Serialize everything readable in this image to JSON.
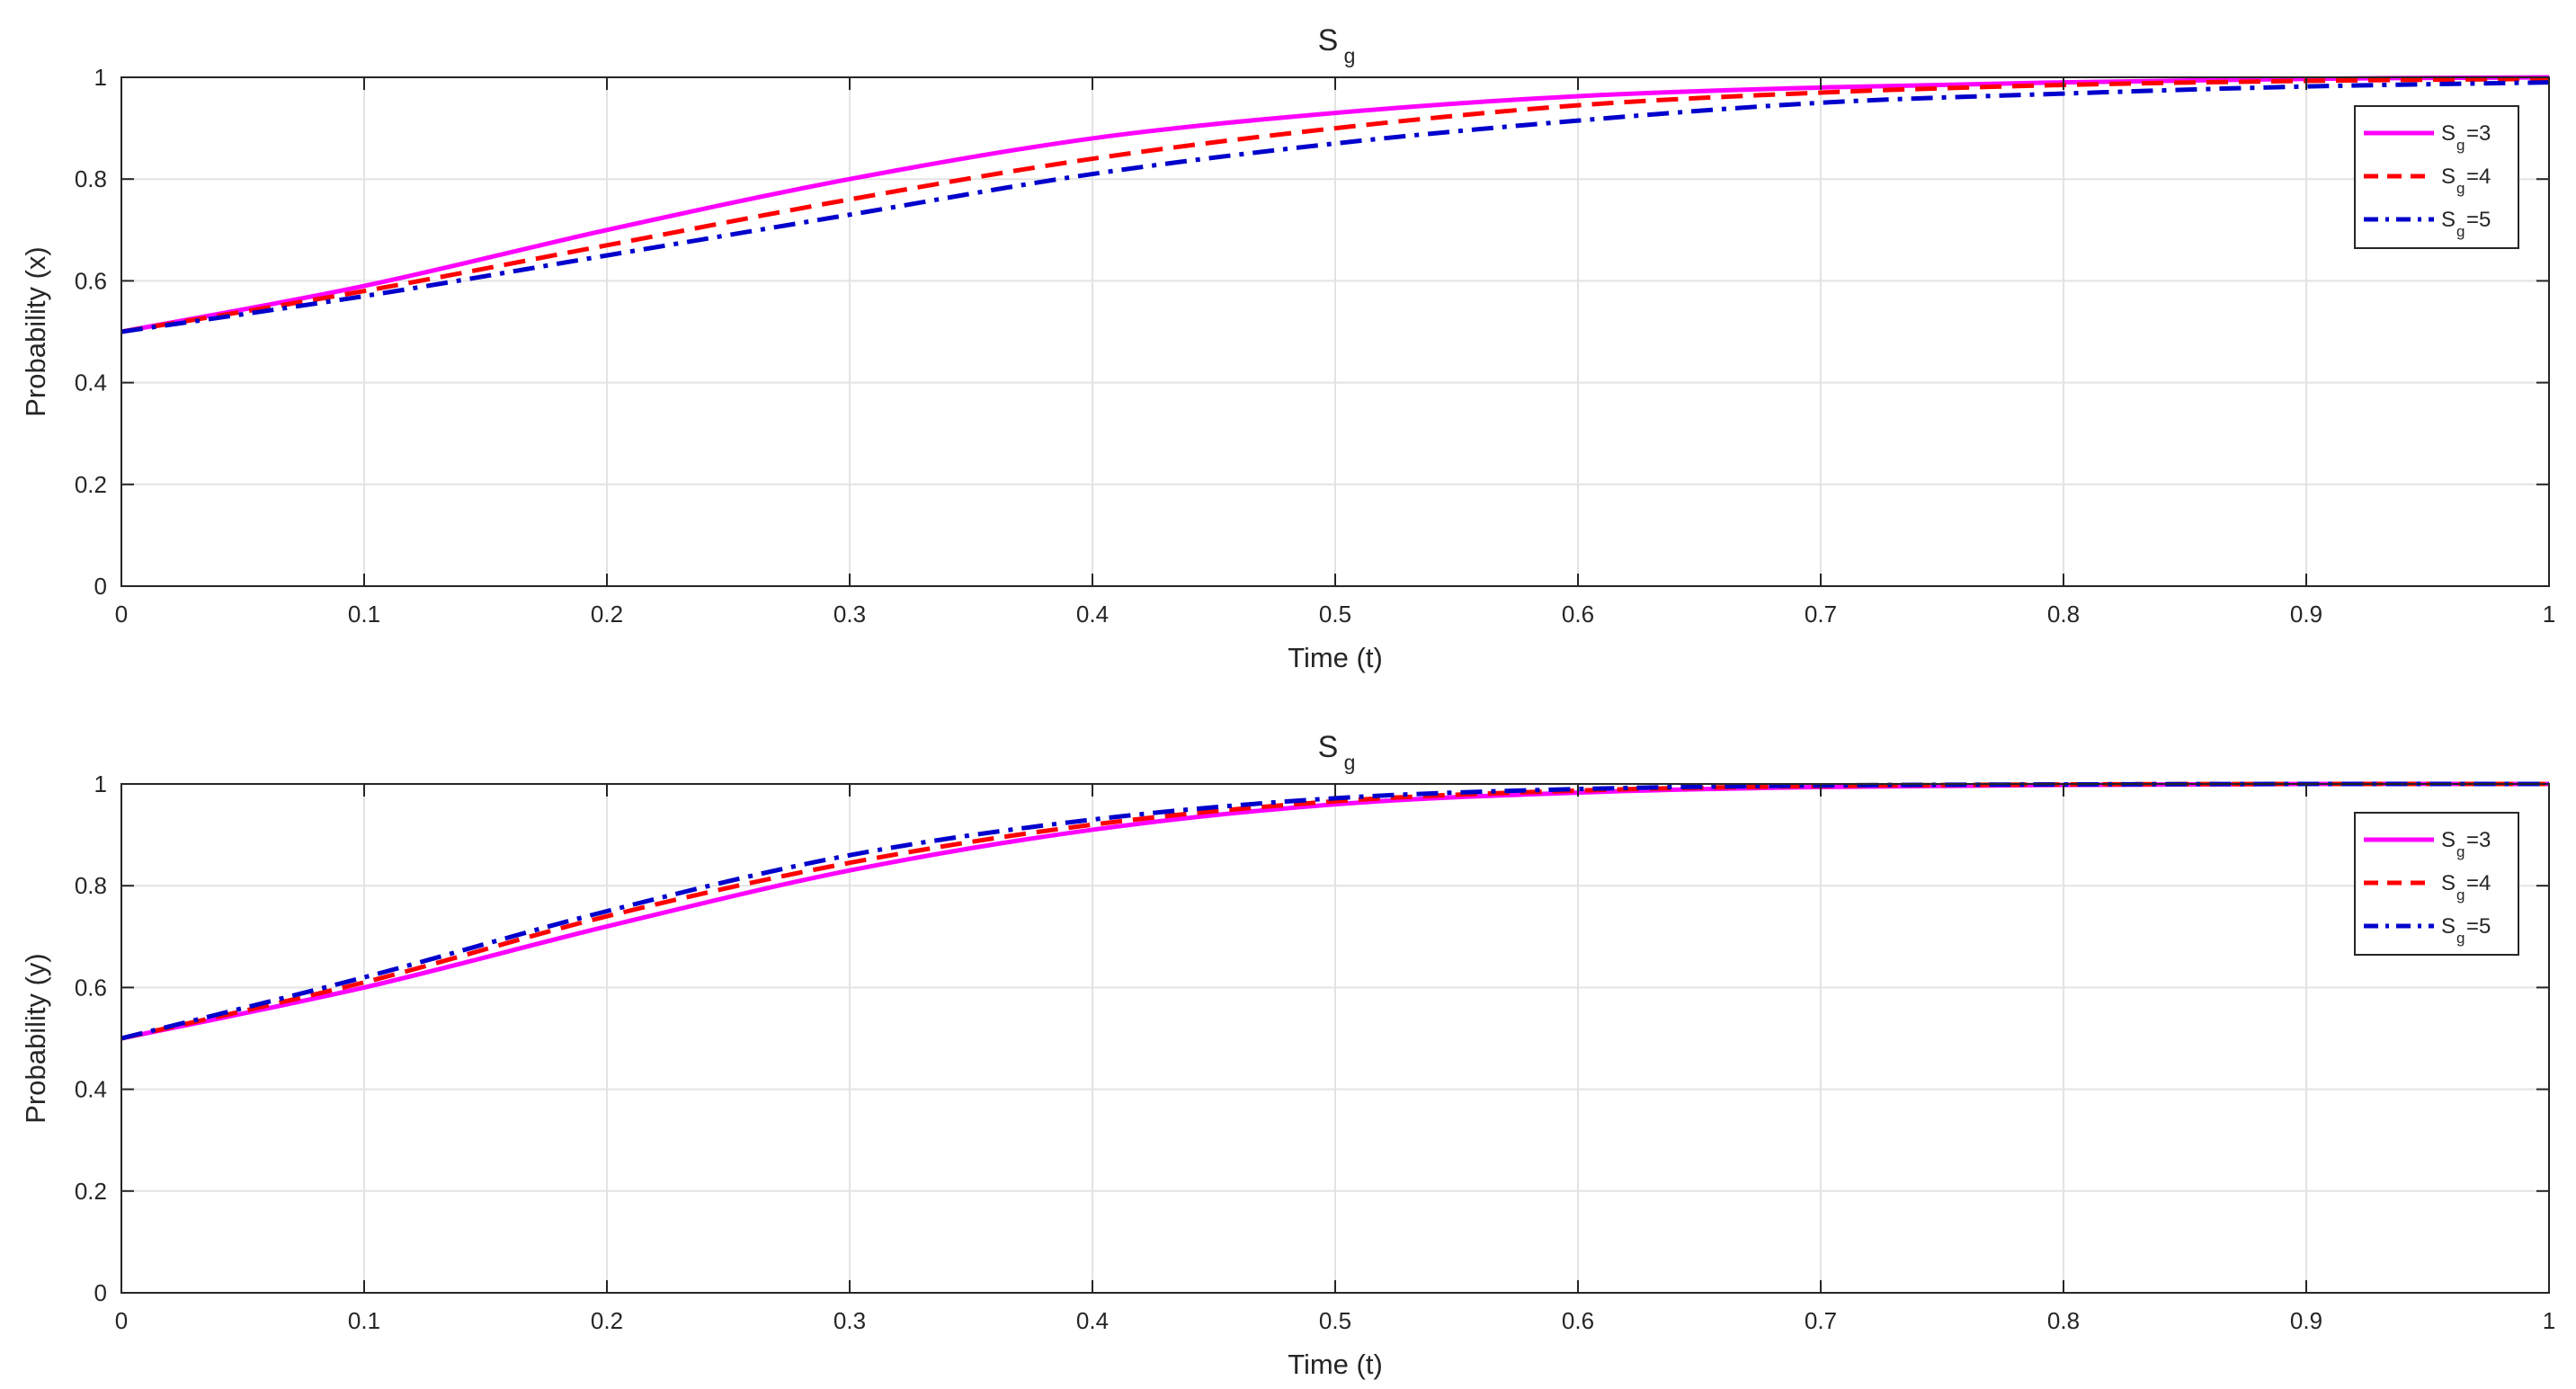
{
  "chart_data": [
    {
      "type": "line",
      "title": "S",
      "title_subscript": "g",
      "xlabel": "Time (t)",
      "ylabel": "Probability (x)",
      "xlim": [
        0,
        1
      ],
      "ylim": [
        0,
        1
      ],
      "xticks": [
        0,
        0.1,
        0.2,
        0.3,
        0.4,
        0.5,
        0.6,
        0.7,
        0.8,
        0.9,
        1
      ],
      "yticks": [
        0,
        0.2,
        0.4,
        0.6,
        0.8,
        1
      ],
      "xtick_labels": [
        "0",
        "0.1",
        "0.2",
        "0.3",
        "0.4",
        "0.5",
        "0.6",
        "0.7",
        "0.8",
        "0.9",
        "1"
      ],
      "ytick_labels": [
        "0",
        "0.2",
        "0.4",
        "0.6",
        "0.8",
        "1"
      ],
      "grid": true,
      "legend_position": "top-right",
      "x": [
        0,
        0.1,
        0.2,
        0.3,
        0.4,
        0.5,
        0.6,
        0.7,
        0.8,
        0.9,
        1.0
      ],
      "series": [
        {
          "name": "S_g=3",
          "legend_main": "S",
          "legend_sub": "g",
          "legend_tail": "=3",
          "color": "#ff00ff",
          "style": "solid",
          "values": [
            0.5,
            0.59,
            0.7,
            0.8,
            0.88,
            0.93,
            0.963,
            0.98,
            0.99,
            0.997,
            1.0
          ]
        },
        {
          "name": "S_g=4",
          "legend_main": "S",
          "legend_sub": "g",
          "legend_tail": "=4",
          "color": "#ff0000",
          "style": "dashed",
          "values": [
            0.5,
            0.58,
            0.67,
            0.76,
            0.84,
            0.9,
            0.945,
            0.97,
            0.985,
            0.993,
            0.997
          ]
        },
        {
          "name": "S_g=5",
          "legend_main": "S",
          "legend_sub": "g",
          "legend_tail": "=5",
          "color": "#0000cc",
          "style": "dashdot",
          "values": [
            0.5,
            0.57,
            0.65,
            0.73,
            0.81,
            0.87,
            0.915,
            0.95,
            0.968,
            0.982,
            0.99
          ]
        }
      ]
    },
    {
      "type": "line",
      "title": "S",
      "title_subscript": "g",
      "xlabel": "Time (t)",
      "ylabel": "Probability (y)",
      "xlim": [
        0,
        1
      ],
      "ylim": [
        0,
        1
      ],
      "xticks": [
        0,
        0.1,
        0.2,
        0.3,
        0.4,
        0.5,
        0.6,
        0.7,
        0.8,
        0.9,
        1
      ],
      "yticks": [
        0,
        0.2,
        0.4,
        0.6,
        0.8,
        1
      ],
      "xtick_labels": [
        "0",
        "0.1",
        "0.2",
        "0.3",
        "0.4",
        "0.5",
        "0.6",
        "0.7",
        "0.8",
        "0.9",
        "1"
      ],
      "ytick_labels": [
        "0",
        "0.2",
        "0.4",
        "0.6",
        "0.8",
        "1"
      ],
      "grid": true,
      "legend_position": "top-right",
      "x": [
        0,
        0.1,
        0.2,
        0.3,
        0.4,
        0.5,
        0.6,
        0.7,
        0.8,
        0.9,
        1.0
      ],
      "series": [
        {
          "name": "S_g=3",
          "legend_main": "S",
          "legend_sub": "g",
          "legend_tail": "=3",
          "color": "#ff00ff",
          "style": "solid",
          "values": [
            0.5,
            0.6,
            0.72,
            0.83,
            0.91,
            0.96,
            0.983,
            0.994,
            0.998,
            1.0,
            1.0
          ]
        },
        {
          "name": "S_g=4",
          "legend_main": "S",
          "legend_sub": "g",
          "legend_tail": "=4",
          "color": "#ff0000",
          "style": "dashed",
          "values": [
            0.5,
            0.61,
            0.74,
            0.845,
            0.92,
            0.966,
            0.987,
            0.996,
            0.999,
            1.0,
            1.0
          ]
        },
        {
          "name": "S_g=5",
          "legend_main": "S",
          "legend_sub": "g",
          "legend_tail": "=5",
          "color": "#0000cc",
          "style": "dashdot",
          "values": [
            0.5,
            0.62,
            0.75,
            0.86,
            0.93,
            0.972,
            0.99,
            0.997,
            0.999,
            1.0,
            1.0
          ]
        }
      ]
    }
  ]
}
